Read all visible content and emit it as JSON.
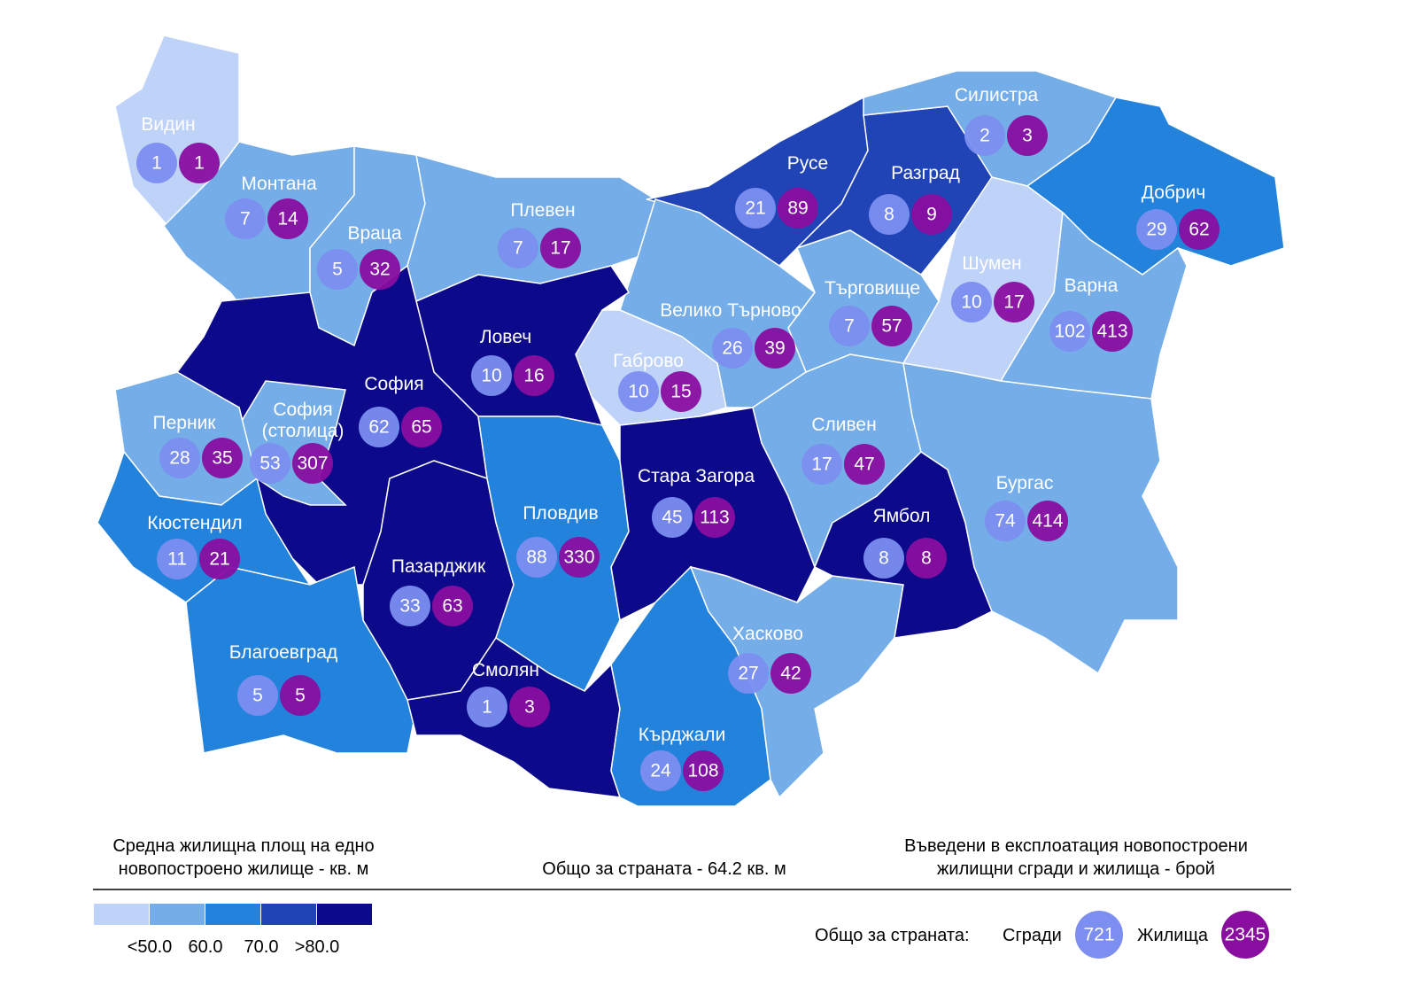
{
  "regions": [
    {
      "name": "Видин",
      "color": "#bfd2f8",
      "buildings": 1,
      "dwellings": 1
    },
    {
      "name": "Монтана",
      "color": "#74ade8",
      "buildings": 7,
      "dwellings": 14
    },
    {
      "name": "Враца",
      "color": "#74ade8",
      "buildings": 5,
      "dwellings": 32
    },
    {
      "name": "Плевен",
      "color": "#74ade8",
      "buildings": 7,
      "dwellings": 17
    },
    {
      "name": "Русе",
      "color": "#2044b6",
      "buildings": 21,
      "dwellings": 89
    },
    {
      "name": "Разград",
      "color": "#2044b6",
      "buildings": 8,
      "dwellings": 9
    },
    {
      "name": "Силистра",
      "color": "#74ade8",
      "buildings": 2,
      "dwellings": 3
    },
    {
      "name": "Добрич",
      "color": "#2382dc",
      "buildings": 29,
      "dwellings": 62
    },
    {
      "name": "Шумен",
      "color": "#bfd2f8",
      "buildings": 10,
      "dwellings": 17
    },
    {
      "name": "Варна",
      "color": "#74ade8",
      "buildings": 102,
      "dwellings": 413
    },
    {
      "name": "Търговище",
      "color": "#74ade8",
      "buildings": 7,
      "dwellings": 57
    },
    {
      "name": "Велико Търново",
      "color": "#74ade8",
      "buildings": 26,
      "dwellings": 39
    },
    {
      "name": "Габрово",
      "color": "#bfd2f8",
      "buildings": 10,
      "dwellings": 15
    },
    {
      "name": "Ловеч",
      "color": "#0c0a8a",
      "buildings": 10,
      "dwellings": 16
    },
    {
      "name": "София",
      "color": "#0c0a8a",
      "buildings": 62,
      "dwellings": 65
    },
    {
      "name": "София (столица)",
      "color": "#74ade8",
      "buildings": 53,
      "dwellings": 307
    },
    {
      "name": "Перник",
      "color": "#74ade8",
      "buildings": 28,
      "dwellings": 35
    },
    {
      "name": "Кюстендил",
      "color": "#2382dc",
      "buildings": 11,
      "dwellings": 21
    },
    {
      "name": "Благоевград",
      "color": "#2382dc",
      "buildings": 5,
      "dwellings": 5
    },
    {
      "name": "Пазарджик",
      "color": "#0c0a8a",
      "buildings": 33,
      "dwellings": 63
    },
    {
      "name": "Пловдив",
      "color": "#2382dc",
      "buildings": 88,
      "dwellings": 330
    },
    {
      "name": "Смолян",
      "color": "#0c0a8a",
      "buildings": 1,
      "dwellings": 3
    },
    {
      "name": "Стара Загора",
      "color": "#0c0a8a",
      "buildings": 45,
      "dwellings": 113
    },
    {
      "name": "Кърджали",
      "color": "#2382dc",
      "buildings": 24,
      "dwellings": 108
    },
    {
      "name": "Хасково",
      "color": "#74ade8",
      "buildings": 27,
      "dwellings": 42
    },
    {
      "name": "Сливен",
      "color": "#74ade8",
      "buildings": 17,
      "dwellings": 47
    },
    {
      "name": "Ямбол",
      "color": "#0c0a8a",
      "buildings": 8,
      "dwellings": 8
    },
    {
      "name": "Бургас",
      "color": "#74ade8",
      "buildings": 74,
      "dwellings": 414
    }
  ],
  "legend": {
    "title": "Средна жилищна площ на едно новопостроено жилище - кв. м",
    "colors": [
      "#bfd2f8",
      "#74ade8",
      "#2382dc",
      "#2044b6",
      "#0c0a8a"
    ],
    "ticks": [
      {
        "value": 50,
        "label": "<50.0"
      },
      {
        "value": 60,
        "label": "60.0"
      },
      {
        "value": 70,
        "label": "70.0"
      },
      {
        "value": 80,
        "label": ">80.0"
      }
    ]
  },
  "country_average": "Общо за страната - 64.2 кв. м",
  "counts_title": "Въведени в експлоатация новопостроени жилищни сгради и жилища - брой",
  "totals": {
    "label": "Общо за страната:",
    "buildings_label": "Сгради",
    "buildings": 721,
    "dwellings_label": "Жилища",
    "dwellings": 2345
  },
  "bubble_colors": {
    "buildings": "#7c8ef0",
    "dwellings": "#890ea0"
  }
}
